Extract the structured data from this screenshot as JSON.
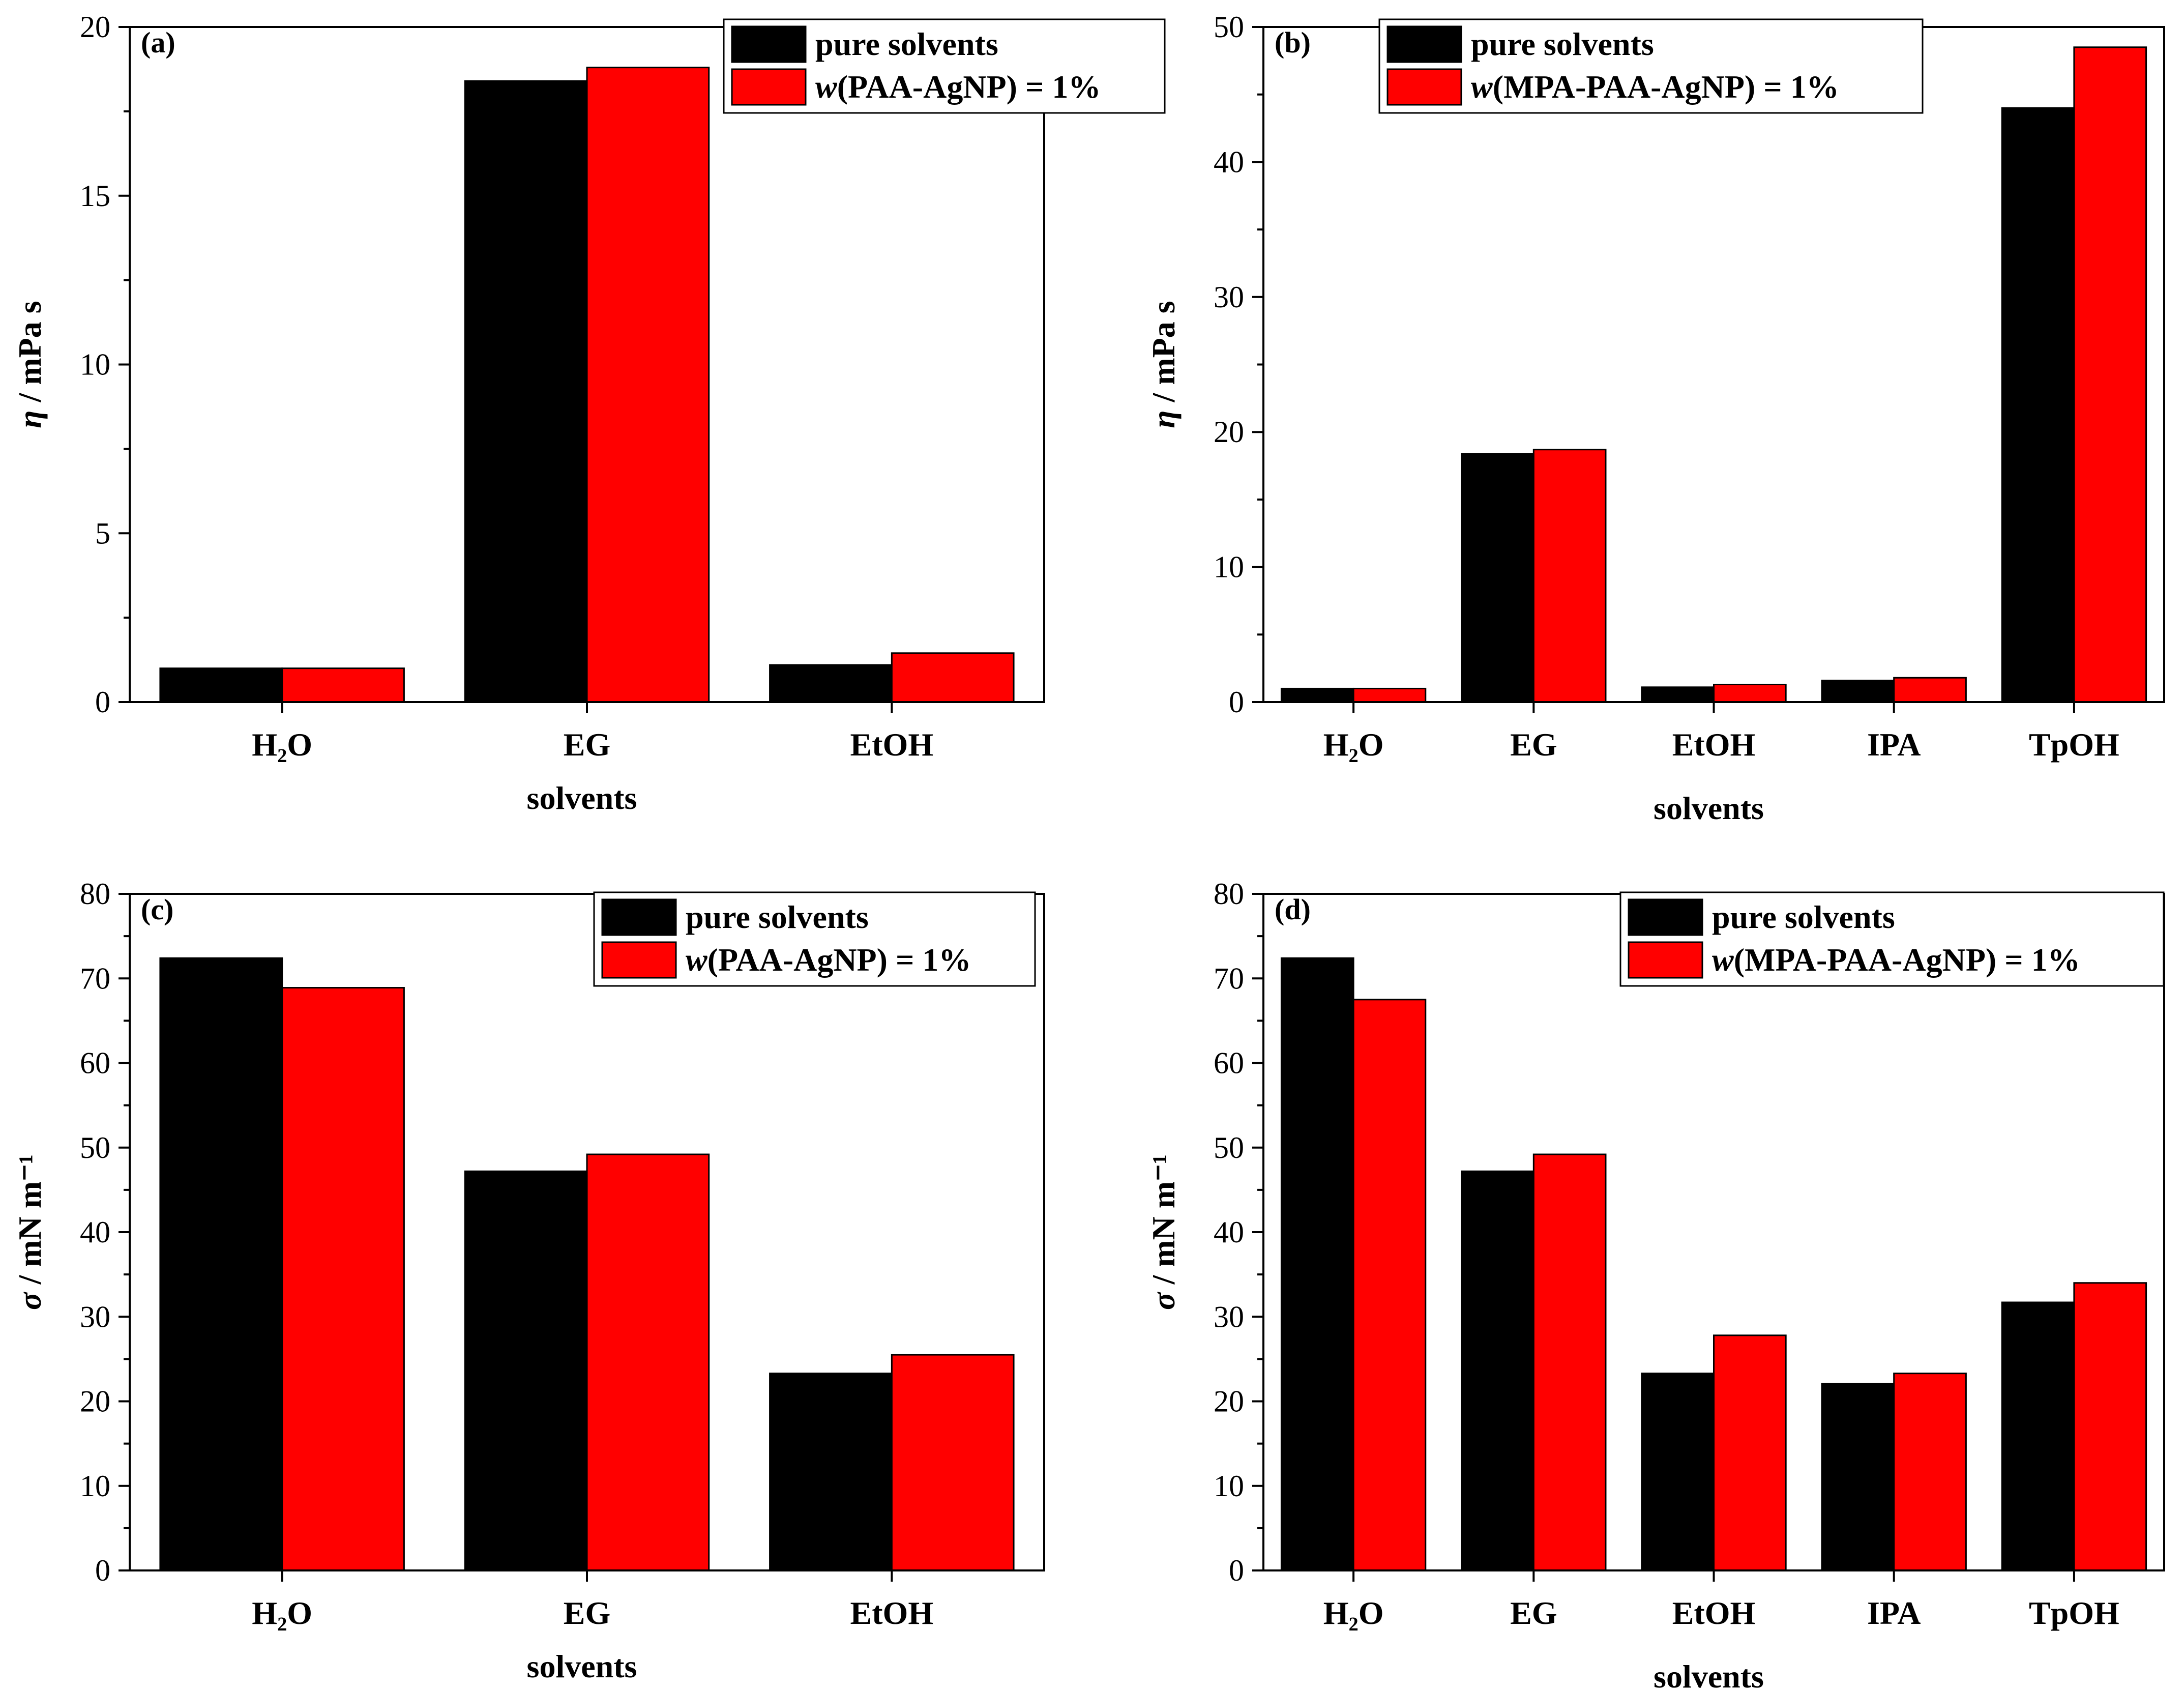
{
  "chart_data": [
    {
      "type": "bar",
      "panel_label": "(a)",
      "categories": [
        "H₂O",
        "EG",
        "EtOH"
      ],
      "xlabel": "solvents",
      "ylabel": "η / mPa s",
      "ylim": [
        0,
        20
      ],
      "yticks": [
        0,
        5,
        10,
        15,
        20
      ],
      "legend_position": "top-right",
      "series": [
        {
          "name": "pure solvents",
          "color": "#000000",
          "values": [
            1.0,
            18.4,
            1.1
          ]
        },
        {
          "name": "w(PAA-AgNP) = 1%",
          "color": "#ff0000",
          "values": [
            1.0,
            18.8,
            1.45
          ]
        }
      ]
    },
    {
      "type": "bar",
      "panel_label": "(b)",
      "categories": [
        "H₂O",
        "EG",
        "EtOH",
        "IPA",
        "TpOH"
      ],
      "xlabel": "solvents",
      "ylabel": "η / mPa s",
      "ylim": [
        0,
        50
      ],
      "yticks": [
        0,
        10,
        20,
        30,
        40,
        50
      ],
      "legend_position": "top-right",
      "series": [
        {
          "name": "pure solvents",
          "color": "#000000",
          "values": [
            1.0,
            18.4,
            1.1,
            1.6,
            44.0
          ]
        },
        {
          "name": "w(MPA-PAA-AgNP) = 1%",
          "color": "#ff0000",
          "values": [
            1.0,
            18.7,
            1.3,
            1.8,
            48.5
          ]
        }
      ]
    },
    {
      "type": "bar",
      "panel_label": "(c)",
      "categories": [
        "H₂O",
        "EG",
        "EtOH"
      ],
      "xlabel": "solvents",
      "ylabel": "σ / mN m⁻¹",
      "ylim": [
        0,
        80
      ],
      "yticks": [
        0,
        10,
        20,
        30,
        40,
        50,
        60,
        70,
        80
      ],
      "legend_position": "top-right",
      "series": [
        {
          "name": "pure solvents",
          "color": "#000000",
          "values": [
            72.4,
            47.2,
            23.3
          ]
        },
        {
          "name": "w(PAA-AgNP) = 1%",
          "color": "#ff0000",
          "values": [
            68.9,
            49.2,
            25.5
          ]
        }
      ]
    },
    {
      "type": "bar",
      "panel_label": "(d)",
      "categories": [
        "H₂O",
        "EG",
        "EtOH",
        "IPA",
        "TpOH"
      ],
      "xlabel": "solvents",
      "ylabel": "σ / mN m⁻¹",
      "ylim": [
        0,
        80
      ],
      "yticks": [
        0,
        10,
        20,
        30,
        40,
        50,
        60,
        70,
        80
      ],
      "legend_position": "top-right",
      "series": [
        {
          "name": "pure solvents",
          "color": "#000000",
          "values": [
            72.4,
            47.2,
            23.3,
            22.1,
            31.7
          ]
        },
        {
          "name": "w(MPA-PAA-AgNP) = 1%",
          "color": "#ff0000",
          "values": [
            67.5,
            49.2,
            27.8,
            23.3,
            34.0
          ]
        }
      ]
    }
  ]
}
